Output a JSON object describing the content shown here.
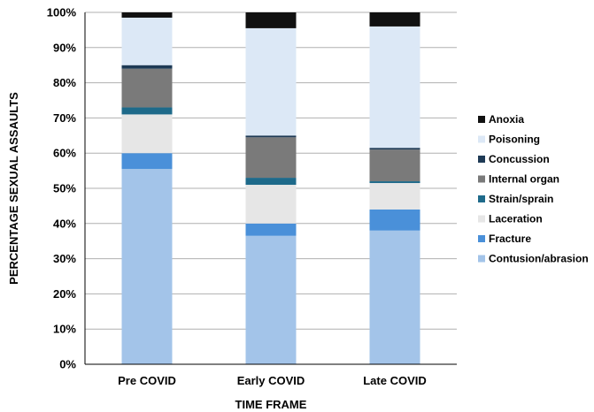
{
  "chart_data": {
    "type": "bar",
    "stacked": true,
    "categories": [
      "Pre COVID",
      "Early COVID",
      "Late COVID"
    ],
    "xlabel": "TIME FRAME",
    "ylabel": "PERCENTAGE SEXUAL ASSAULTS",
    "ylim": [
      0,
      100
    ],
    "ytick_labels": [
      "0%",
      "10%",
      "20%",
      "30%",
      "40%",
      "50%",
      "60%",
      "70%",
      "80%",
      "90%",
      "100%"
    ],
    "grid": true,
    "legend_position": "right",
    "series": [
      {
        "name": "Contusion/abrasion",
        "color": "#a3c4e9",
        "values": [
          55.5,
          36.5,
          38.0
        ]
      },
      {
        "name": "Fracture",
        "color": "#4a90d9",
        "values": [
          4.5,
          3.5,
          6.0
        ]
      },
      {
        "name": "Laceration",
        "color": "#e6e6e6",
        "values": [
          11.0,
          11.0,
          7.5
        ]
      },
      {
        "name": "Strain/sprain",
        "color": "#1e6a8a",
        "values": [
          2.0,
          2.0,
          0.5
        ]
      },
      {
        "name": "Internal organ",
        "color": "#7a7a7a",
        "values": [
          11.0,
          11.5,
          9.0
        ]
      },
      {
        "name": "Concussion",
        "color": "#1e3a55",
        "values": [
          1.0,
          0.5,
          0.5
        ]
      },
      {
        "name": "Poisoning",
        "color": "#dce8f6",
        "values": [
          13.5,
          30.5,
          34.5
        ]
      },
      {
        "name": "Anoxia",
        "color": "#111111",
        "values": [
          1.5,
          4.5,
          4.0
        ]
      }
    ]
  }
}
